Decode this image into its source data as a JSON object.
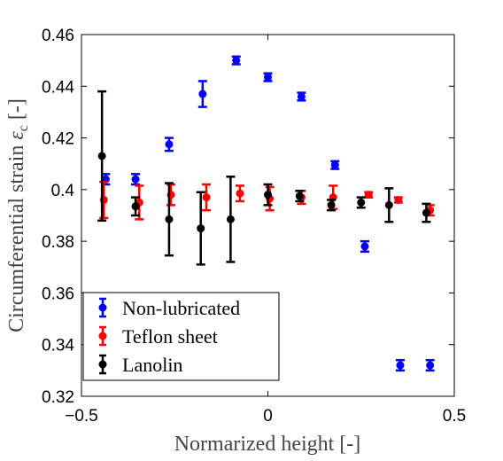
{
  "chart_data": {
    "type": "scatter",
    "xlabel": "Normarized height [-]",
    "ylabel": "Circumferential strain",
    "ylabel_symbol": "ε",
    "ylabel_subscript": "c",
    "ylabel_unit": "[-]",
    "xlim": [
      -0.5,
      0.5
    ],
    "ylim": [
      0.32,
      0.46
    ],
    "xticks": [
      -0.5,
      0,
      0.5
    ],
    "xtick_labels": [
      "−0.5",
      "0",
      "0.5"
    ],
    "yticks": [
      0.32,
      0.34,
      0.36,
      0.38,
      0.4,
      0.42,
      0.44,
      0.46
    ],
    "ytick_labels": [
      "0.32",
      "0.34",
      "0.36",
      "0.38",
      "0.4",
      "0.42",
      "0.44",
      "0.46"
    ],
    "grid": false,
    "legend_position": "bottom-left",
    "series": [
      {
        "name": "Non-lubricated",
        "color": "#0000ff",
        "points": [
          {
            "x": -0.435,
            "y": 0.404,
            "err": 0.002
          },
          {
            "x": -0.355,
            "y": 0.404,
            "err": 0.002
          },
          {
            "x": -0.265,
            "y": 0.4175,
            "err": 0.0025
          },
          {
            "x": -0.175,
            "y": 0.437,
            "err": 0.005
          },
          {
            "x": -0.085,
            "y": 0.45,
            "err": 0.0015
          },
          {
            "x": 0.0,
            "y": 0.4435,
            "err": 0.0015
          },
          {
            "x": 0.09,
            "y": 0.436,
            "err": 0.0015
          },
          {
            "x": 0.18,
            "y": 0.4095,
            "err": 0.0015
          },
          {
            "x": 0.26,
            "y": 0.378,
            "err": 0.002
          },
          {
            "x": 0.355,
            "y": 0.332,
            "err": 0.002
          },
          {
            "x": 0.435,
            "y": 0.332,
            "err": 0.002
          }
        ]
      },
      {
        "name": "Teflon sheet",
        "color": "#ff0000",
        "points": [
          {
            "x": -0.44,
            "y": 0.396,
            "err": 0.007
          },
          {
            "x": -0.345,
            "y": 0.395,
            "err": 0.0065
          },
          {
            "x": -0.26,
            "y": 0.398,
            "err": 0.004
          },
          {
            "x": -0.165,
            "y": 0.397,
            "err": 0.005
          },
          {
            "x": -0.075,
            "y": 0.3985,
            "err": 0.003
          },
          {
            "x": 0.005,
            "y": 0.3965,
            "err": 0.0045
          },
          {
            "x": 0.09,
            "y": 0.397,
            "err": 0.0025
          },
          {
            "x": 0.175,
            "y": 0.397,
            "err": 0.0045
          },
          {
            "x": 0.27,
            "y": 0.398,
            "err": 0.001
          },
          {
            "x": 0.35,
            "y": 0.396,
            "err": 0.001
          },
          {
            "x": 0.435,
            "y": 0.392,
            "err": 0.002
          }
        ]
      },
      {
        "name": "Lanolin",
        "color": "#000000",
        "points": [
          {
            "x": -0.445,
            "y": 0.413,
            "err": 0.025
          },
          {
            "x": -0.355,
            "y": 0.3935,
            "err": 0.0035
          },
          {
            "x": -0.265,
            "y": 0.3885,
            "err": 0.014
          },
          {
            "x": -0.18,
            "y": 0.385,
            "err": 0.014
          },
          {
            "x": -0.1,
            "y": 0.3885,
            "err": 0.0165
          },
          {
            "x": 0.0,
            "y": 0.398,
            "err": 0.004
          },
          {
            "x": 0.085,
            "y": 0.3975,
            "err": 0.002
          },
          {
            "x": 0.17,
            "y": 0.394,
            "err": 0.002
          },
          {
            "x": 0.25,
            "y": 0.395,
            "err": 0.002
          },
          {
            "x": 0.325,
            "y": 0.394,
            "err": 0.0065
          },
          {
            "x": 0.425,
            "y": 0.391,
            "err": 0.0035
          }
        ]
      }
    ]
  }
}
